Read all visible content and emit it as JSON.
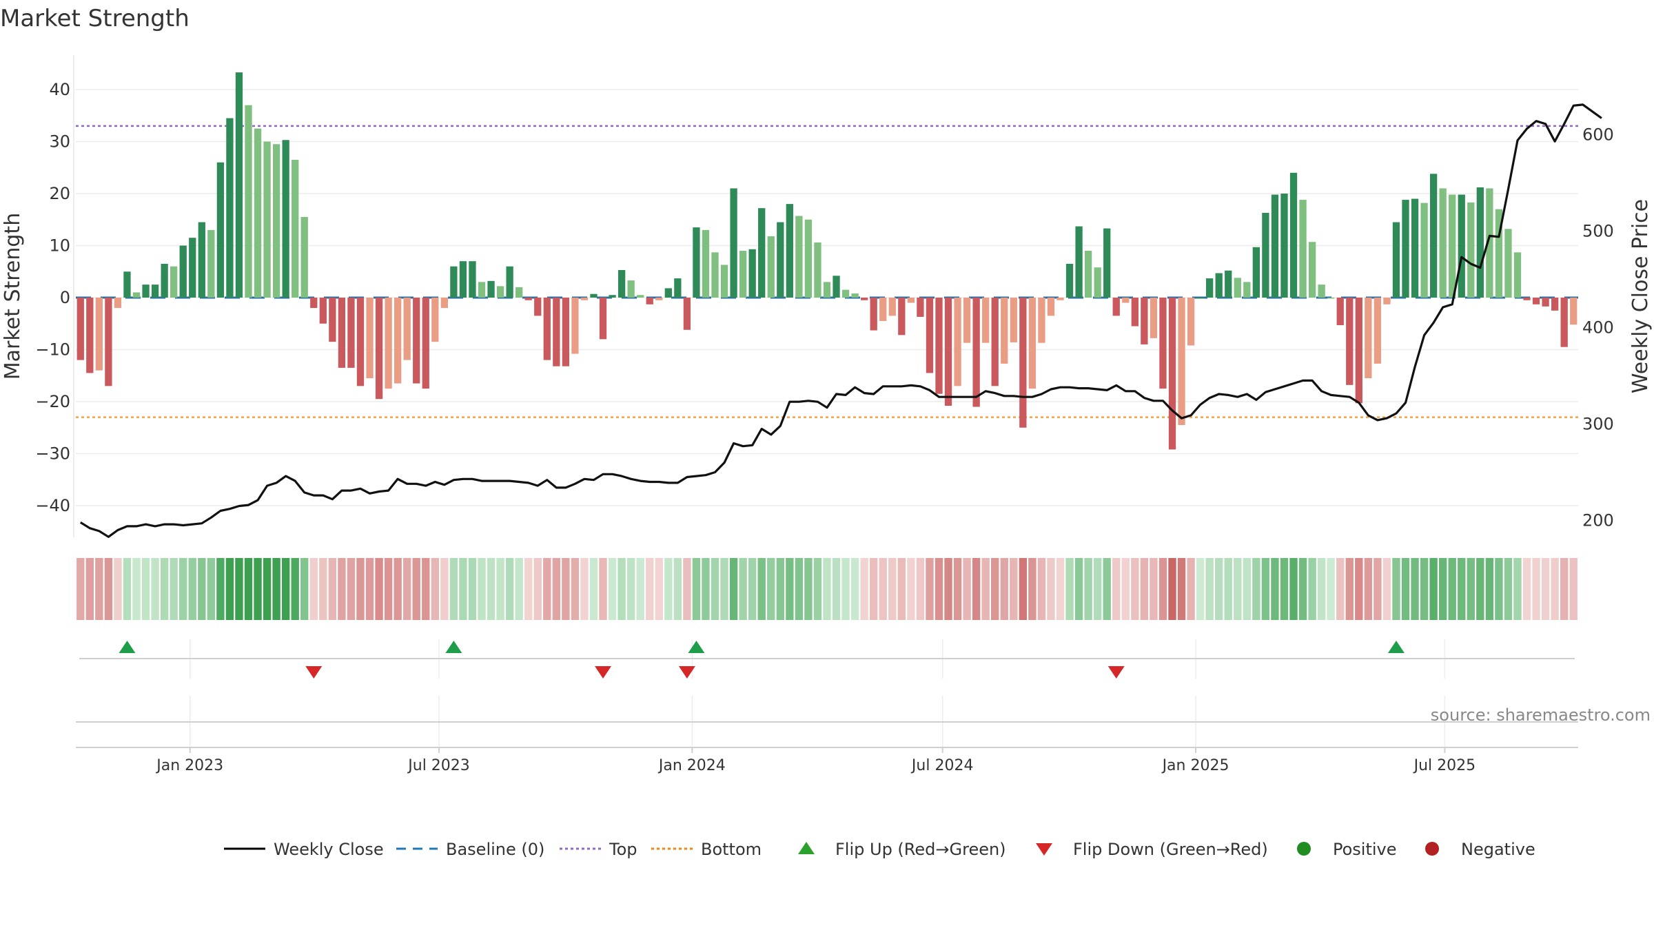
{
  "chart_data": {
    "type": "bar",
    "title": "Market Strength",
    "ylabel": "Market Strength",
    "y2label": "Weekly Close Price",
    "ylim": [
      -47,
      47
    ],
    "y2lim": [
      182.5,
      683.8
    ],
    "yticks": [
      40,
      30,
      20,
      10,
      0,
      -10,
      -20,
      -30,
      -40
    ],
    "y2ticks": [
      600,
      500,
      400,
      300,
      200
    ],
    "top_level": 33,
    "bottom_level": -23,
    "baseline": 0,
    "x_start": "2022-10-10",
    "x_end": "2025-10-06",
    "x_ticks": [
      {
        "date": "2023-01-01",
        "label": "Jan 2023"
      },
      {
        "date": "2023-07-01",
        "label": "Jul 2023"
      },
      {
        "date": "2024-01-01",
        "label": "Jan 2024"
      },
      {
        "date": "2024-07-01",
        "label": "Jul 2024"
      },
      {
        "date": "2025-01-01",
        "label": "Jan 2025"
      },
      {
        "date": "2025-07-01",
        "label": "Jul 2025"
      }
    ],
    "strength_weekly": [
      -12,
      -14.5,
      -14,
      -17,
      -2,
      5,
      1,
      2.5,
      2.5,
      6.5,
      6,
      10,
      11.5,
      14.5,
      13,
      26,
      34.5,
      43.3,
      37,
      32.5,
      30,
      29.5,
      30.3,
      26.5,
      15.5,
      -2,
      -5,
      -8.5,
      -13.5,
      -13.5,
      -17,
      -15.5,
      -19.5,
      -17.5,
      -16.5,
      -12,
      -16.5,
      -17.5,
      -8.5,
      -2,
      6,
      7,
      7,
      3,
      3.2,
      2.2,
      6,
      2,
      -0.5,
      -3.5,
      -12,
      -13.2,
      -13.2,
      -10.8,
      -0.5,
      0.7,
      -8,
      0.5,
      5.3,
      3.3,
      0.5,
      -1.3,
      -0.5,
      1.8,
      3.7,
      -6.2,
      13.5,
      13,
      8.7,
      6.3,
      21,
      9,
      9.3,
      17.2,
      11.8,
      14.5,
      18,
      15.7,
      15,
      10.6,
      3,
      4.2,
      1.5,
      0.8,
      -0.5,
      -6.3,
      -4.5,
      -3.5,
      -7.2,
      -1,
      -3.7,
      -14.5,
      -18.5,
      -20.8,
      -17,
      -8.7,
      -21,
      -8.7,
      -17,
      -12.7,
      -8.6,
      -25,
      -17.5,
      -8.7,
      -3.5,
      -0.5,
      6.5,
      13.7,
      9,
      5.8,
      13.3,
      -3.5,
      -1,
      -5.5,
      -9,
      -7.8,
      -17.5,
      -29.2,
      -24.5,
      -9.2,
      0,
      3.7,
      4.7,
      5.2,
      3.8,
      3,
      9.7,
      16.3,
      19.8,
      20,
      24,
      18.8,
      10.7,
      2.5,
      0,
      -5.3,
      -16.8,
      -20.3,
      -15.5,
      -12.7,
      -1.3,
      14.5,
      18.8,
      19,
      18.2,
      23.8,
      21,
      19.8,
      19.8,
      18.3,
      21.2,
      21,
      17,
      13.2,
      8.7,
      -0.5,
      -1.3,
      -1.7,
      -2.5,
      -9.5,
      -5.2
    ],
    "price_weekly": [
      198,
      192,
      189,
      183,
      190,
      194,
      194,
      196,
      194,
      196,
      196,
      195,
      196,
      197,
      203,
      210,
      212,
      215,
      216,
      221,
      236,
      239,
      246,
      241,
      229,
      226,
      226,
      222,
      231,
      231,
      233,
      228,
      230,
      231,
      243,
      238,
      238,
      236,
      240,
      237,
      242,
      243,
      243,
      241,
      241,
      241,
      241,
      240,
      239,
      236,
      242,
      234,
      234,
      238,
      243,
      242,
      248,
      248,
      246,
      243,
      241,
      240,
      240,
      239,
      239,
      245,
      246,
      247,
      250,
      260,
      280,
      277,
      278,
      295,
      289,
      298,
      323,
      323,
      324,
      323,
      317,
      331,
      330,
      338,
      332,
      331,
      339,
      339,
      339,
      340,
      339,
      335,
      328,
      328,
      328,
      328,
      328,
      334,
      332,
      329,
      329,
      328,
      328,
      331,
      336,
      338,
      338,
      337,
      337,
      336,
      335,
      340,
      334,
      334,
      327,
      324,
      324,
      314,
      306,
      309,
      320,
      327,
      331,
      330,
      328,
      331,
      325,
      333,
      336,
      339,
      342,
      345,
      345,
      334,
      330,
      329,
      328,
      322,
      309,
      304,
      306,
      311,
      322,
      359,
      392,
      405,
      421,
      424,
      473,
      466,
      462,
      495,
      494,
      543,
      594,
      606,
      614,
      611,
      593,
      611,
      630,
      631,
      624,
      617
    ]
  },
  "legend": [
    {
      "label": "Weekly Close",
      "kind": "line",
      "color": "#000000"
    },
    {
      "label": "Baseline (0)",
      "kind": "dash",
      "color": "#1f77b4"
    },
    {
      "label": "Top",
      "kind": "dot",
      "color": "#9467bd"
    },
    {
      "label": "Bottom",
      "kind": "dot",
      "color": "#ff7f0e"
    },
    {
      "label": "Flip Up (Red→Green)",
      "kind": "tri-up",
      "color": "#2ca02c"
    },
    {
      "label": "Flip Down (Green→Red)",
      "kind": "tri-down",
      "color": "#d62728"
    },
    {
      "label": "Positive",
      "kind": "circle",
      "color": "#228b22"
    },
    {
      "label": "Negative",
      "kind": "circle",
      "color": "#b22222"
    }
  ],
  "colors": {
    "strong_positive": "#2e8b57",
    "weak_positive": "#7fbf7f",
    "strong_negative": "#c9595c",
    "weak_negative": "#e99d85",
    "flip_up": "#1e9e4a",
    "flip_down": "#d62728"
  },
  "source": "source: sharemaestro.com"
}
